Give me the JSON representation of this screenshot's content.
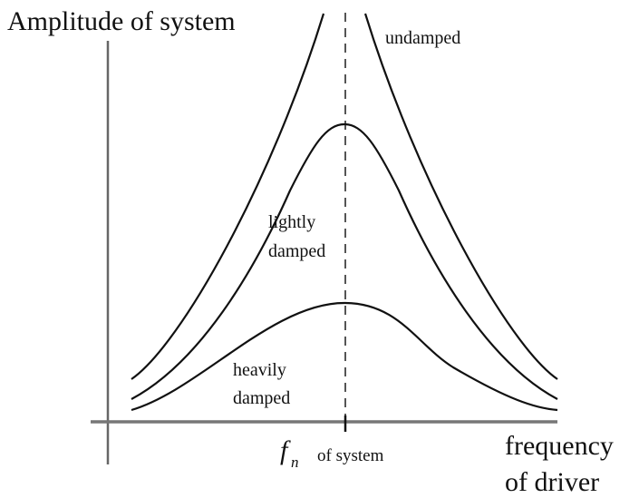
{
  "diagram": {
    "y_axis_label": "Amplitude of system",
    "x_axis_label_line1": "frequency",
    "x_axis_label_line2": "of driver",
    "natural_freq_symbol": "f",
    "natural_freq_subscript": "n",
    "natural_freq_label": "of system",
    "curves": [
      {
        "label_lines": [
          "undamped"
        ]
      },
      {
        "label_lines": [
          "lightly",
          "damped"
        ]
      },
      {
        "label_lines": [
          "heavily",
          "damped"
        ]
      }
    ],
    "colors": {
      "curve": "#111111",
      "axis": "#777777",
      "dashed": "#555555"
    }
  }
}
